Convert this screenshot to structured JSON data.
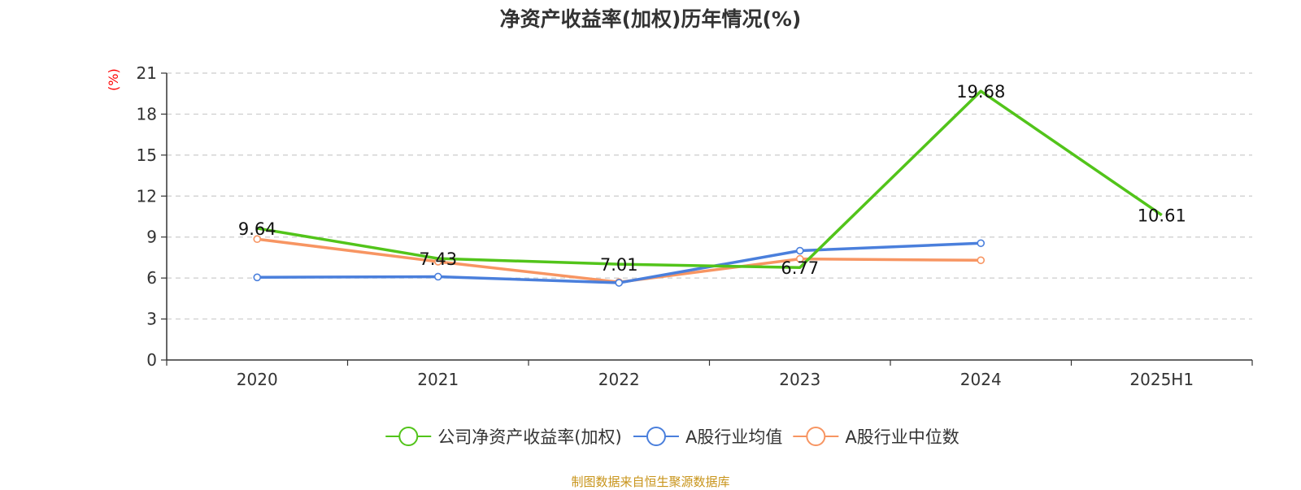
{
  "chart_data": {
    "type": "line",
    "title": "净资产收益率(加权)历年情况(%)",
    "ylabel": "(%)",
    "xlabel": "",
    "categories": [
      "2020",
      "2021",
      "2022",
      "2023",
      "2024",
      "2025H1"
    ],
    "ylim": [
      0,
      21
    ],
    "yticks": [
      0,
      3,
      6,
      9,
      12,
      15,
      18,
      21
    ],
    "grid": true,
    "legend_position": "bottom",
    "series": [
      {
        "name": "公司净资产收益率(加权)",
        "color": "#52c41a",
        "values": [
          9.64,
          7.43,
          7.01,
          6.77,
          19.68,
          10.61
        ],
        "labels": [
          "9.64",
          "7.43",
          "7.01",
          "6.77",
          "19.68",
          "10.61"
        ],
        "show_labels": true
      },
      {
        "name": "A股行业均值",
        "color": "#4a7fdc",
        "values": [
          6.05,
          6.1,
          5.65,
          8.0,
          8.55,
          null
        ],
        "show_labels": false
      },
      {
        "name": "A股行业中位数",
        "color": "#f79562",
        "values": [
          8.85,
          7.2,
          5.7,
          7.4,
          7.3,
          null
        ],
        "show_labels": false
      }
    ]
  },
  "source": "制图数据来自恒生聚源数据库"
}
